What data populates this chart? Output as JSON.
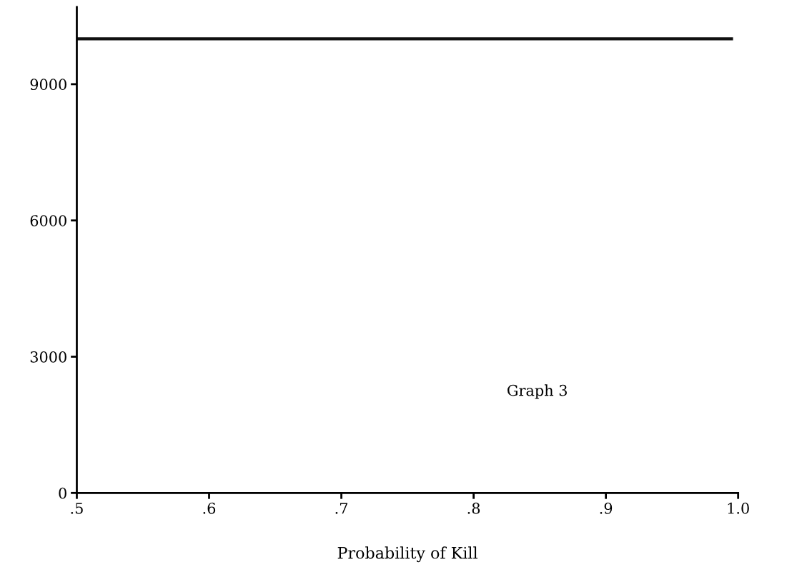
{
  "chart_data": {
    "type": "line",
    "xlabel": "Probability of Kill",
    "x": [
      0.5,
      0.995
    ],
    "series": [
      {
        "color": "#111111",
        "values": [
          10000,
          10000
        ]
      }
    ],
    "xlim": [
      0.5,
      1.0
    ],
    "ylim": [
      0,
      10700
    ],
    "xticks": [
      {
        "value": 0.5,
        "label": ".5"
      },
      {
        "value": 0.6,
        "label": ".6"
      },
      {
        "value": 0.7,
        "label": ".7"
      },
      {
        "value": 0.8,
        "label": ".8"
      },
      {
        "value": 0.9,
        "label": ".9"
      },
      {
        "value": 1.0,
        "label": "1.0"
      }
    ],
    "yticks": [
      0,
      3000,
      6000,
      9000
    ],
    "annotations": [
      "Graph 3"
    ],
    "grid": false,
    "legend": false,
    "marker": "none",
    "line_style": "solid"
  }
}
